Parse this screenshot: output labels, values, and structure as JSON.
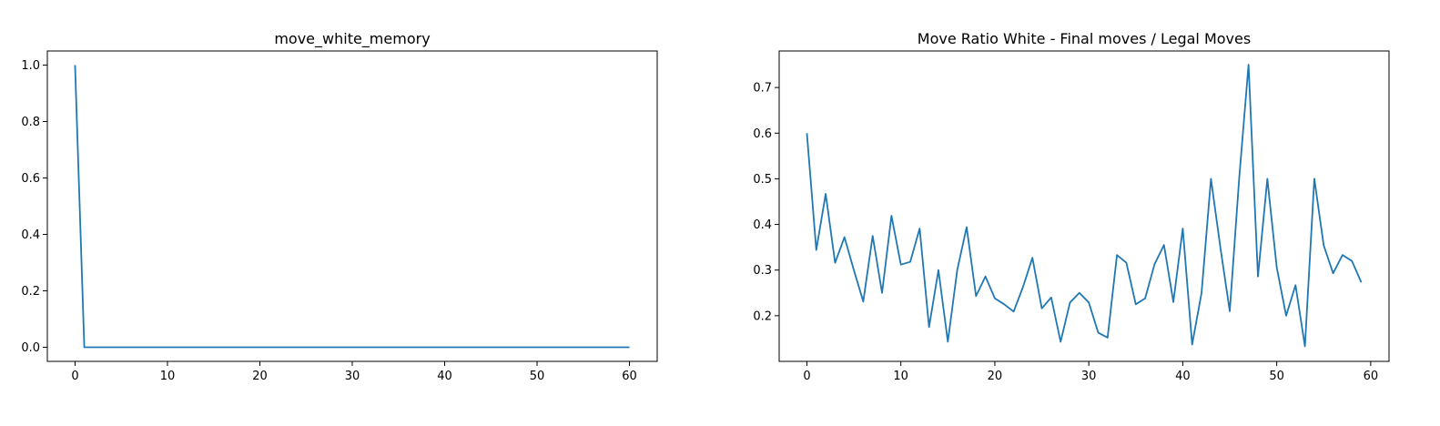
{
  "chart_data": [
    {
      "type": "line",
      "title": "move_white_memory",
      "xlabel": "",
      "ylabel": "",
      "xlim": [
        -3,
        63
      ],
      "ylim": [
        -0.05,
        1.05
      ],
      "xticks": [
        0,
        10,
        20,
        30,
        40,
        50,
        60
      ],
      "xtick_labels": [
        "0",
        "10",
        "20",
        "30",
        "40",
        "50",
        "60"
      ],
      "yticks": [
        0.0,
        0.2,
        0.4,
        0.6,
        0.8,
        1.0
      ],
      "ytick_labels": [
        "0.0",
        "0.2",
        "0.4",
        "0.6",
        "0.8",
        "1.0"
      ],
      "grid": false,
      "color": "#1f77b4",
      "series": [
        {
          "x": [
            0,
            1,
            60
          ],
          "y": [
            1.0,
            0.0,
            0.0
          ]
        }
      ]
    },
    {
      "type": "line",
      "title": "Move Ratio White - Final moves / Legal Moves",
      "xlabel": "",
      "ylabel": "",
      "xlim": [
        -2.95,
        61.95
      ],
      "ylim": [
        0.1,
        0.78
      ],
      "xticks": [
        0,
        10,
        20,
        30,
        40,
        50,
        60
      ],
      "xtick_labels": [
        "0",
        "10",
        "20",
        "30",
        "40",
        "50",
        "60"
      ],
      "yticks": [
        0.2,
        0.3,
        0.4,
        0.5,
        0.6,
        0.7
      ],
      "ytick_labels": [
        "0.2",
        "0.3",
        "0.4",
        "0.5",
        "0.6",
        "0.7"
      ],
      "grid": false,
      "color": "#1f77b4",
      "series": [
        {
          "x": [
            0,
            1,
            2,
            3,
            4,
            5,
            6,
            7,
            8,
            9,
            10,
            11,
            12,
            13,
            14,
            15,
            16,
            17,
            18,
            19,
            20,
            21,
            22,
            23,
            24,
            25,
            26,
            27,
            28,
            29,
            30,
            31,
            32,
            33,
            34,
            35,
            36,
            37,
            38,
            39,
            40,
            41,
            42,
            43,
            44,
            45,
            46,
            47,
            48,
            49,
            50,
            51,
            52,
            53,
            54,
            55,
            56,
            57,
            58,
            59
          ],
          "y": [
            0.6,
            0.344,
            0.467,
            0.316,
            0.372,
            0.3,
            0.231,
            0.375,
            0.25,
            0.419,
            0.312,
            0.318,
            0.391,
            0.175,
            0.3,
            0.143,
            0.3,
            0.394,
            0.243,
            0.286,
            0.238,
            0.225,
            0.209,
            0.263,
            0.327,
            0.216,
            0.24,
            0.143,
            0.229,
            0.25,
            0.229,
            0.163,
            0.152,
            0.333,
            0.316,
            0.225,
            0.238,
            0.313,
            0.355,
            0.23,
            0.391,
            0.137,
            0.25,
            0.5,
            0.35,
            0.21,
            0.5,
            0.75,
            0.286,
            0.5,
            0.306,
            0.2,
            0.267,
            0.133,
            0.5,
            0.354,
            0.293,
            0.333,
            0.32,
            0.273
          ]
        }
      ]
    }
  ]
}
